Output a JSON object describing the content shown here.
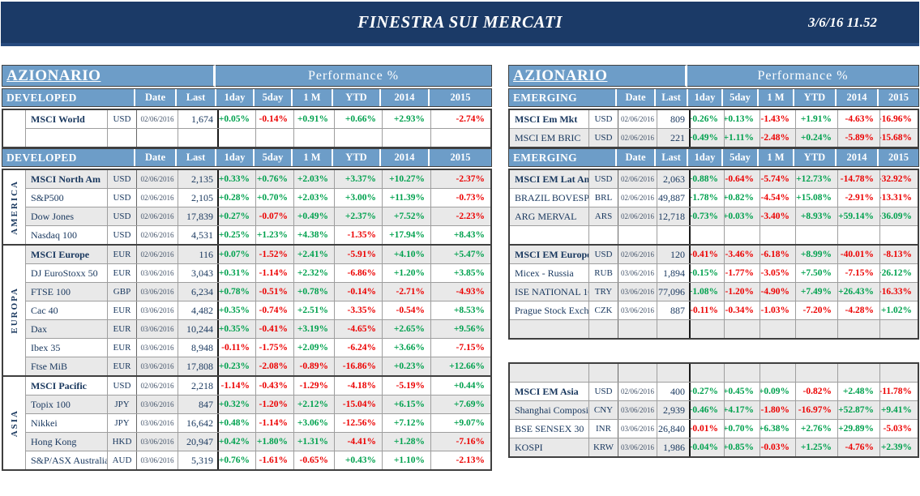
{
  "banner": {
    "title": "FINESTRA SUI MERCATI",
    "datetime": "3/6/16 11.52"
  },
  "perf_header": "Performance %",
  "columns": [
    "Date",
    "Last",
    "1day",
    "5day",
    "1 M",
    "YTD",
    "2014",
    "2015"
  ],
  "colors": {
    "banner_bg": "#1b3a67",
    "header_bg": "#6d9dc8",
    "navy_text": "#17365d",
    "positive": "#00a14e",
    "negative": "#ec0000",
    "row_shade": "#e9e9e9",
    "date_text": "#44546a"
  },
  "tables": {
    "left": {
      "title": "AZIONARIO",
      "subtitle": "DEVELOPED",
      "groups": [
        {
          "region": "",
          "rows": [
            {
              "name": "MSCI World",
              "bold": true,
              "ccy": "USD",
              "date": "02/06/2016",
              "last": "1,674",
              "perf": [
                "+0.05%",
                "-0.14%",
                "+0.91%",
                "+0.66%",
                "+2.93%",
                "-2.74%"
              ],
              "shade": false
            },
            {
              "empty": true,
              "shade": false
            }
          ]
        },
        {
          "region": "AMERICA",
          "rows": [
            {
              "name": "MSCI North Am",
              "bold": true,
              "ccy": "USD",
              "date": "02/06/2016",
              "last": "2,135",
              "perf": [
                "+0.33%",
                "+0.76%",
                "+2.03%",
                "+3.37%",
                "+10.27%",
                "-2.37%"
              ],
              "shade": true
            },
            {
              "name": "S&P500",
              "bold": false,
              "ccy": "USD",
              "date": "02/06/2016",
              "last": "2,105",
              "perf": [
                "+0.28%",
                "+0.70%",
                "+2.03%",
                "+3.00%",
                "+11.39%",
                "-0.73%"
              ],
              "shade": false
            },
            {
              "name": "Dow Jones",
              "bold": false,
              "ccy": "USD",
              "date": "02/06/2016",
              "last": "17,839",
              "perf": [
                "+0.27%",
                "-0.07%",
                "+0.49%",
                "+2.37%",
                "+7.52%",
                "-2.23%"
              ],
              "shade": true
            },
            {
              "name": "Nasdaq 100",
              "bold": false,
              "ccy": "USD",
              "date": "02/06/2016",
              "last": "4,531",
              "perf": [
                "+0.25%",
                "+1.23%",
                "+4.38%",
                "-1.35%",
                "+17.94%",
                "+8.43%"
              ],
              "shade": false
            }
          ]
        },
        {
          "region": "EUROPA",
          "rows": [
            {
              "name": "MSCI Europe",
              "bold": true,
              "ccy": "EUR",
              "date": "02/06/2016",
              "last": "116",
              "perf": [
                "+0.07%",
                "-1.52%",
                "+2.41%",
                "-5.91%",
                "+4.10%",
                "+5.47%"
              ],
              "shade": true
            },
            {
              "name": "DJ EuroStoxx 50",
              "bold": false,
              "ccy": "EUR",
              "date": "03/06/2016",
              "last": "3,043",
              "perf": [
                "+0.31%",
                "-1.14%",
                "+2.32%",
                "-6.86%",
                "+1.20%",
                "+3.85%"
              ],
              "shade": false
            },
            {
              "name": "FTSE 100",
              "bold": false,
              "ccy": "GBP",
              "date": "03/06/2016",
              "last": "6,234",
              "perf": [
                "+0.78%",
                "-0.51%",
                "+0.78%",
                "-0.14%",
                "-2.71%",
                "-4.93%"
              ],
              "shade": true
            },
            {
              "name": "Cac 40",
              "bold": false,
              "ccy": "EUR",
              "date": "03/06/2016",
              "last": "4,482",
              "perf": [
                "+0.35%",
                "-0.74%",
                "+2.51%",
                "-3.35%",
                "-0.54%",
                "+8.53%"
              ],
              "shade": false
            },
            {
              "name": "Dax",
              "bold": false,
              "ccy": "EUR",
              "date": "03/06/2016",
              "last": "10,244",
              "perf": [
                "+0.35%",
                "-0.41%",
                "+3.19%",
                "-4.65%",
                "+2.65%",
                "+9.56%"
              ],
              "shade": true
            },
            {
              "name": "Ibex 35",
              "bold": false,
              "ccy": "EUR",
              "date": "03/06/2016",
              "last": "8,948",
              "perf": [
                "-0.11%",
                "-1.75%",
                "+2.09%",
                "-6.24%",
                "+3.66%",
                "-7.15%"
              ],
              "shade": false
            },
            {
              "name": "Ftse MiB",
              "bold": false,
              "ccy": "EUR",
              "date": "03/06/2016",
              "last": "17,808",
              "perf": [
                "+0.23%",
                "-2.08%",
                "-0.89%",
                "-16.86%",
                "+0.23%",
                "+12.66%"
              ],
              "shade": true
            }
          ]
        },
        {
          "region": "ASIA",
          "rows": [
            {
              "name": "MSCI Pacific",
              "bold": true,
              "ccy": "USD",
              "date": "02/06/2016",
              "last": "2,218",
              "perf": [
                "-1.14%",
                "-0.43%",
                "-1.29%",
                "-4.18%",
                "-5.19%",
                "+0.44%"
              ],
              "shade": false
            },
            {
              "name": "Topix 100",
              "bold": false,
              "ccy": "JPY",
              "date": "03/06/2016",
              "last": "847",
              "perf": [
                "+0.32%",
                "-1.20%",
                "+2.12%",
                "-15.04%",
                "+6.15%",
                "+7.69%"
              ],
              "shade": true
            },
            {
              "name": "Nikkei",
              "bold": false,
              "ccy": "JPY",
              "date": "03/06/2016",
              "last": "16,642",
              "perf": [
                "+0.48%",
                "-1.14%",
                "+3.06%",
                "-12.56%",
                "+7.12%",
                "+9.07%"
              ],
              "shade": false
            },
            {
              "name": "Hong Kong",
              "bold": false,
              "ccy": "HKD",
              "date": "03/06/2016",
              "last": "20,947",
              "perf": [
                "+0.42%",
                "+1.80%",
                "+1.31%",
                "-4.41%",
                "+1.28%",
                "-7.16%"
              ],
              "shade": true
            },
            {
              "name": "S&P/ASX Australia",
              "bold": false,
              "ccy": "AUD",
              "date": "03/06/2016",
              "last": "5,319",
              "perf": [
                "+0.76%",
                "-1.61%",
                "-0.65%",
                "+0.43%",
                "+1.10%",
                "-2.13%"
              ],
              "shade": false
            }
          ]
        }
      ]
    },
    "right": {
      "title": "AZIONARIO",
      "subtitle": "EMERGING",
      "groups": [
        {
          "region": "",
          "rows": [
            {
              "name": "MSCI Em Mkt",
              "bold": true,
              "ccy": "USD",
              "date": "02/06/2016",
              "last": "809",
              "perf": [
                "+0.26%",
                "+0.13%",
                "-1.43%",
                "+1.91%",
                "-4.63%",
                "-16.96%"
              ],
              "shade": false
            },
            {
              "name": "MSCI EM BRIC",
              "bold": false,
              "ccy": "USD",
              "date": "02/06/2016",
              "last": "221",
              "perf": [
                "+0.49%",
                "+1.11%",
                "-2.48%",
                "+0.24%",
                "-5.89%",
                "-15.68%"
              ],
              "shade": true
            }
          ]
        },
        {
          "region": "",
          "rows": [
            {
              "name": "MSCI EM Lat Am",
              "bold": true,
              "ccy": "USD",
              "date": "02/06/2016",
              "last": "2,063",
              "perf": [
                "+0.88%",
                "-0.64%",
                "-5.74%",
                "+12.73%",
                "-14.78%",
                "-32.92%"
              ],
              "shade": true
            },
            {
              "name": "BRAZIL BOVESPA",
              "bold": false,
              "ccy": "BRL",
              "date": "02/06/2016",
              "last": "49,887",
              "perf": [
                "+1.78%",
                "+0.82%",
                "-4.54%",
                "+15.08%",
                "-2.91%",
                "-13.31%"
              ],
              "shade": false
            },
            {
              "name": "ARG MERVAL",
              "bold": false,
              "ccy": "ARS",
              "date": "02/06/2016",
              "last": "12,718",
              "perf": [
                "+0.73%",
                "+0.03%",
                "-3.40%",
                "+8.93%",
                "+59.14%",
                "+36.09%"
              ],
              "shade": true
            },
            {
              "empty": true,
              "shade": false
            }
          ]
        },
        {
          "region": "",
          "rows": [
            {
              "name": "MSCI EM Europe",
              "bold": true,
              "ccy": "USD",
              "date": "02/06/2016",
              "last": "120",
              "perf": [
                "-0.41%",
                "-3.46%",
                "-6.18%",
                "+8.99%",
                "-40.01%",
                "-8.13%"
              ],
              "shade": true
            },
            {
              "name": "Micex - Russia",
              "bold": false,
              "ccy": "RUB",
              "date": "03/06/2016",
              "last": "1,894",
              "perf": [
                "+0.15%",
                "-1.77%",
                "-3.05%",
                "+7.50%",
                "-7.15%",
                "+26.12%"
              ],
              "shade": false
            },
            {
              "name": "ISE NATIONAL 100",
              "bold": false,
              "ccy": "TRY",
              "date": "03/06/2016",
              "last": "77,096",
              "perf": [
                "+1.08%",
                "-1.20%",
                "-4.90%",
                "+7.49%",
                "+26.43%",
                "-16.33%"
              ],
              "shade": true
            },
            {
              "name": "Prague Stock Exch.",
              "bold": false,
              "ccy": "CZK",
              "date": "03/06/2016",
              "last": "887",
              "perf": [
                "-0.11%",
                "-0.34%",
                "-1.03%",
                "-7.20%",
                "-4.28%",
                "+1.02%"
              ],
              "shade": false
            },
            {
              "empty": true,
              "shade": true
            }
          ]
        },
        {
          "region": "",
          "gap_before": true,
          "rows": [
            {
              "empty": true,
              "shade": true
            },
            {
              "name": "MSCI EM Asia",
              "bold": true,
              "ccy": "USD",
              "date": "02/06/2016",
              "last": "400",
              "perf": [
                "+0.27%",
                "+0.45%",
                "+0.09%",
                "-0.82%",
                "+2.48%",
                "-11.78%"
              ],
              "shade": false
            },
            {
              "name": "Shanghai Composite",
              "bold": false,
              "ccy": "CNY",
              "date": "03/06/2016",
              "last": "2,939",
              "perf": [
                "+0.46%",
                "+4.17%",
                "-1.80%",
                "-16.97%",
                "+52.87%",
                "+9.41%"
              ],
              "shade": true
            },
            {
              "name": "BSE SENSEX 30",
              "bold": false,
              "ccy": "INR",
              "date": "03/06/2016",
              "last": "26,840",
              "perf": [
                "-0.01%",
                "+0.70%",
                "+6.38%",
                "+2.76%",
                "+29.89%",
                "-5.03%"
              ],
              "shade": false
            },
            {
              "name": "KOSPI",
              "bold": false,
              "ccy": "KRW",
              "date": "03/06/2016",
              "last": "1,986",
              "perf": [
                "+0.04%",
                "+0.85%",
                "-0.03%",
                "+1.25%",
                "-4.76%",
                "+2.39%"
              ],
              "shade": true
            }
          ]
        }
      ]
    }
  }
}
